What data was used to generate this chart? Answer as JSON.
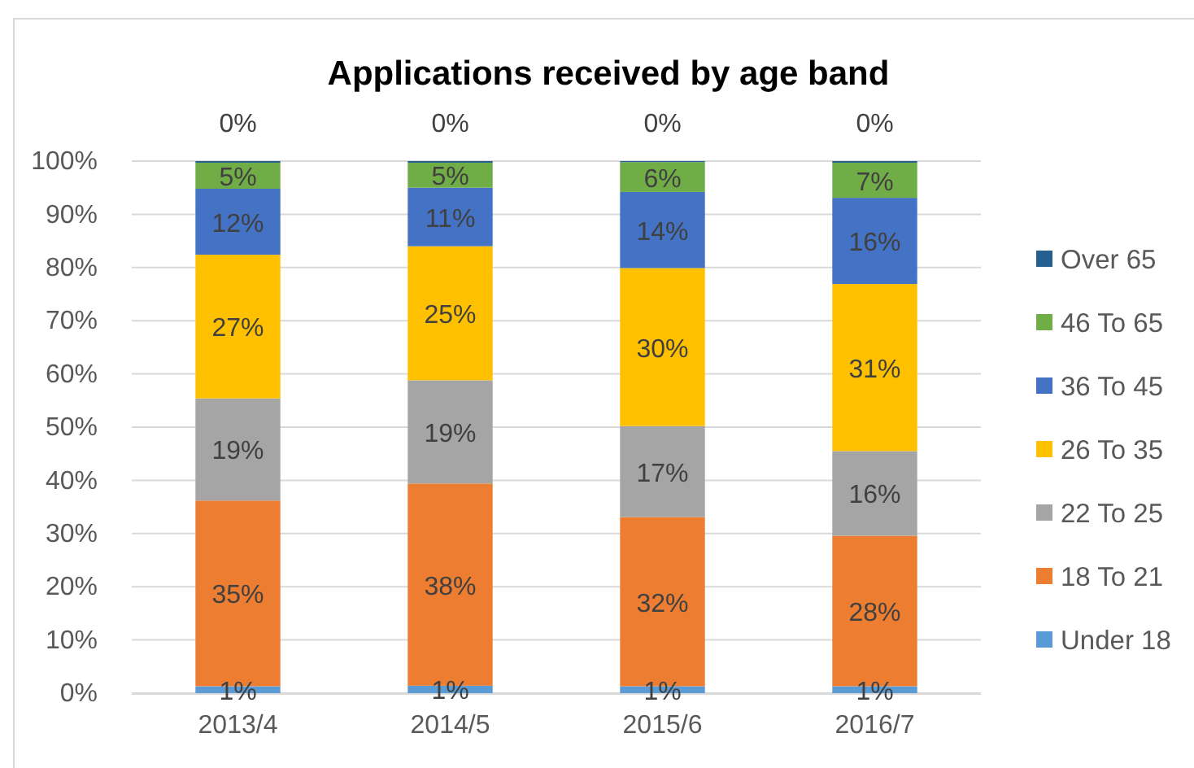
{
  "chart_data": {
    "type": "bar",
    "title": "Applications received by age band",
    "categories": [
      "2013/4",
      "2014/5",
      "2015/6",
      "2016/7"
    ],
    "stacked": true,
    "series": [
      {
        "name": "Under 18",
        "color": "#5b9bd5",
        "values": [
          1.3,
          1.4,
          1.3,
          1.3
        ],
        "value_labels": [
          "1%",
          "1%",
          "1%",
          "1%"
        ]
      },
      {
        "name": "18 To 21",
        "color": "#ed7d31",
        "values": [
          34.9,
          38.0,
          31.8,
          28.3
        ],
        "value_labels": [
          "35%",
          "38%",
          "32%",
          "28%"
        ]
      },
      {
        "name": "22 To 25",
        "color": "#a5a5a5",
        "values": [
          19.2,
          19.4,
          17.1,
          15.9
        ],
        "value_labels": [
          "19%",
          "19%",
          "17%",
          "16%"
        ]
      },
      {
        "name": "26 To 35",
        "color": "#ffc000",
        "values": [
          27.0,
          25.2,
          29.7,
          31.4
        ],
        "value_labels": [
          "27%",
          "25%",
          "30%",
          "31%"
        ]
      },
      {
        "name": "36 To 45",
        "color": "#4472c4",
        "values": [
          12.4,
          11.0,
          14.3,
          16.2
        ],
        "value_labels": [
          "12%",
          "11%",
          "14%",
          "16%"
        ]
      },
      {
        "name": "46 To 65",
        "color": "#70ad47",
        "values": [
          4.9,
          4.7,
          5.6,
          6.6
        ],
        "value_labels": [
          "5%",
          "5%",
          "6%",
          "7%"
        ]
      },
      {
        "name": "Over 65",
        "color": "#255e91",
        "values": [
          0.3,
          0.3,
          0.2,
          0.3
        ],
        "value_labels": [
          "0%",
          "0%",
          "0%",
          "0%"
        ]
      }
    ],
    "ylim": [
      0,
      100
    ],
    "yticks": [
      {
        "value": 0,
        "label": "0%"
      },
      {
        "value": 10,
        "label": "10%"
      },
      {
        "value": 20,
        "label": "20%"
      },
      {
        "value": 30,
        "label": "30%"
      },
      {
        "value": 40,
        "label": "40%"
      },
      {
        "value": 50,
        "label": "50%"
      },
      {
        "value": 60,
        "label": "60%"
      },
      {
        "value": 70,
        "label": "70%"
      },
      {
        "value": 80,
        "label": "80%"
      },
      {
        "value": 90,
        "label": "90%"
      },
      {
        "value": 100,
        "label": "100%"
      }
    ],
    "grid": "y",
    "legend": "right"
  }
}
